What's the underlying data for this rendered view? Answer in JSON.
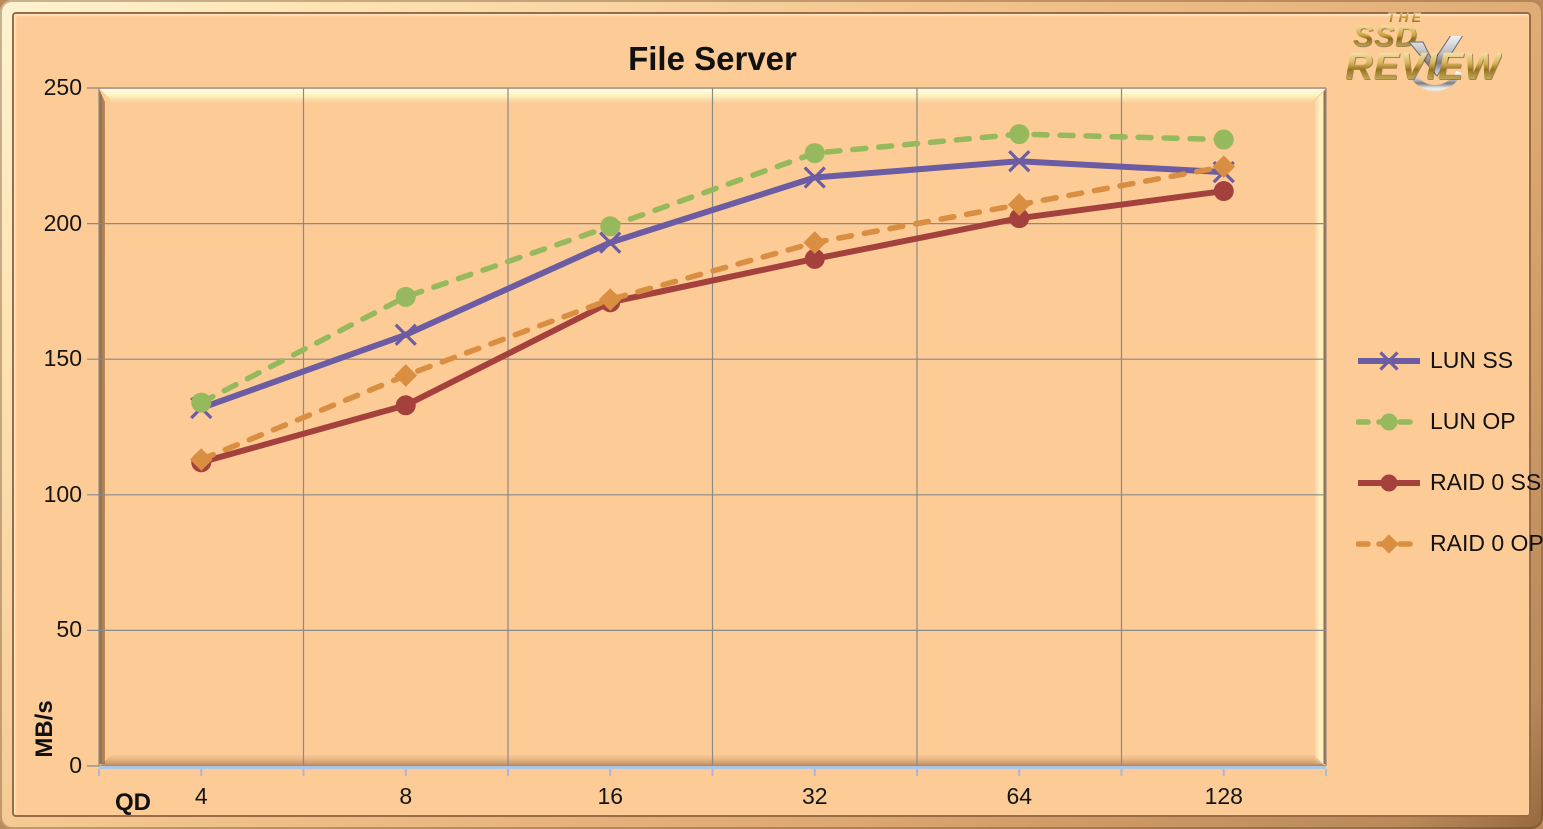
{
  "title": "File Server",
  "logo": {
    "the": "THE",
    "ssd": "SSD",
    "review": "REVIEW"
  },
  "colors": {
    "background": "#fccb96",
    "frame_highlight": "#fef3d0",
    "frame_shadow": "#96693f",
    "gridline": "#8a8a8a",
    "axis_line_blue": "#aec6e6",
    "axis_tick_blue": "#a3bcdd",
    "text": "#111111",
    "lun_ss": "#6b5ca3",
    "lun_op": "#95b95c",
    "raid0_ss": "#a4413d",
    "raid0_op": "#d98e41"
  },
  "chart_data": {
    "type": "line",
    "x": [
      4,
      8,
      16,
      32,
      64,
      128
    ],
    "xticklabels": [
      "4",
      "8",
      "16",
      "32",
      "64",
      "128"
    ],
    "x_axis_prefix": "QD",
    "ylabel": "MB/s",
    "xlabel": "",
    "ylim": [
      0,
      250
    ],
    "yticks": [
      0,
      50,
      100,
      150,
      200,
      250
    ],
    "grid": true,
    "legend_position": "right",
    "series": [
      {
        "name": "LUN SS",
        "values": [
          132,
          159,
          193,
          217,
          223,
          219
        ],
        "color": "#6b5ca3",
        "dash": false,
        "marker": "x",
        "width": 6
      },
      {
        "name": "LUN OP",
        "values": [
          134,
          173,
          199,
          226,
          233,
          231
        ],
        "color": "#95b95c",
        "dash": true,
        "marker": "circle",
        "width": 5.5
      },
      {
        "name": "RAID 0 SS",
        "values": [
          112,
          133,
          171,
          187,
          202,
          212
        ],
        "color": "#a4413d",
        "dash": false,
        "marker": "circle",
        "width": 6
      },
      {
        "name": "RAID 0 OP",
        "values": [
          113,
          144,
          172,
          193,
          207,
          221
        ],
        "color": "#d98e41",
        "dash": true,
        "marker": "diamond",
        "width": 5.5
      }
    ]
  }
}
